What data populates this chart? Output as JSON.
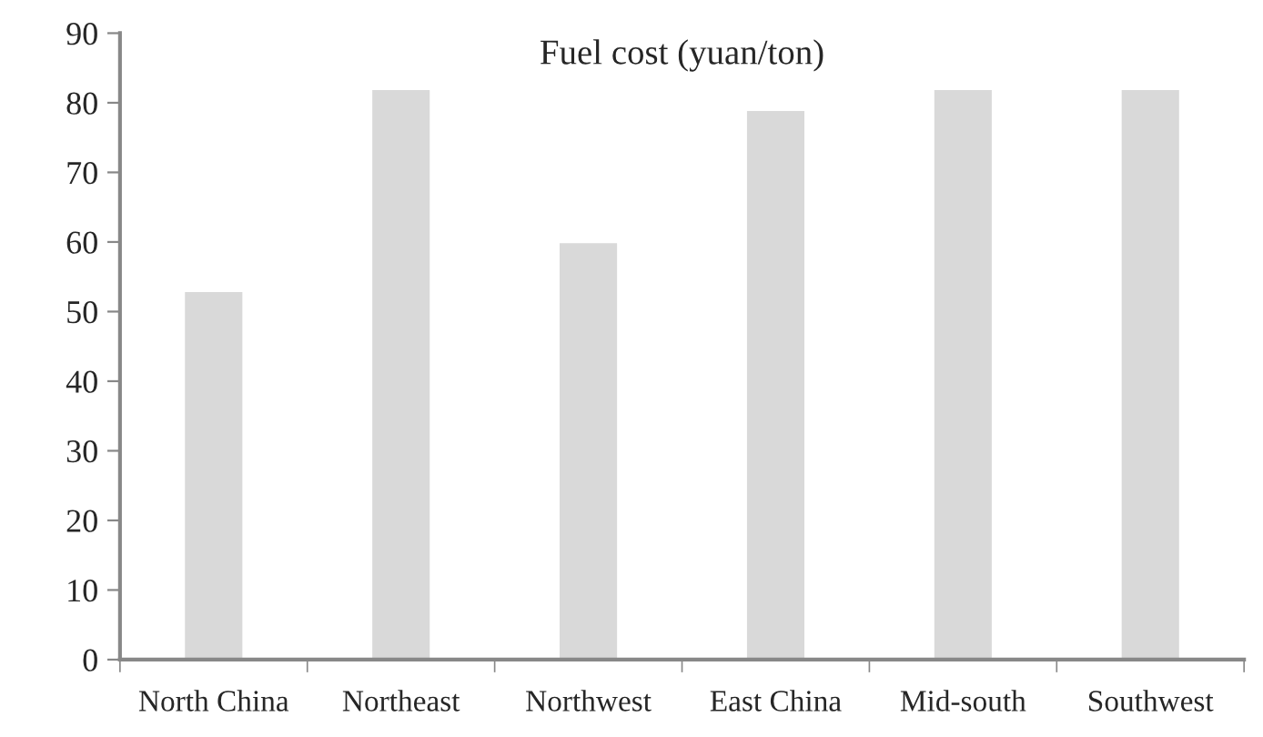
{
  "chart_data": {
    "type": "bar",
    "title": "Fuel cost (yuan/ton)",
    "categories": [
      "North China",
      "Northeast",
      "Northwest",
      "East China",
      "Mid-south",
      "Southwest"
    ],
    "values": [
      53,
      82,
      60,
      79,
      82,
      82
    ],
    "color": "#d9d9d9",
    "ylim": [
      0,
      90
    ],
    "yticks": [
      0,
      10,
      20,
      30,
      40,
      50,
      60,
      70,
      80,
      90
    ],
    "grid": false,
    "legend": false
  }
}
